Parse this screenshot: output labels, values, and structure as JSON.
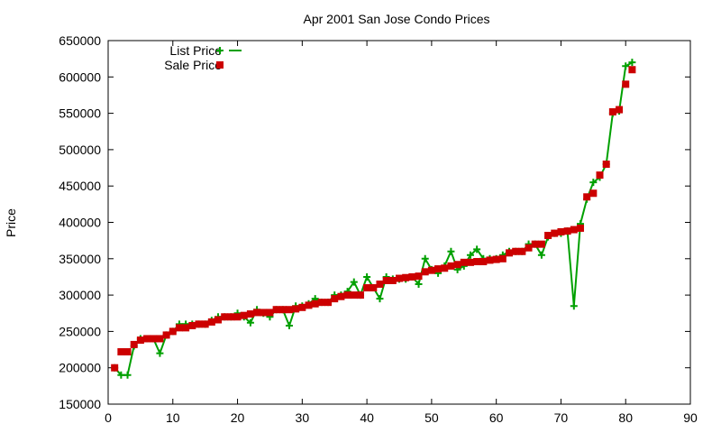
{
  "chart_data": {
    "type": "scatter",
    "title": "Apr 2001 San Jose Condo Prices",
    "xlabel": "",
    "ylabel": "Price",
    "xlim": [
      0,
      90
    ],
    "ylim": [
      150000,
      650000
    ],
    "x_ticks": [
      0,
      10,
      20,
      30,
      40,
      50,
      60,
      70,
      80,
      90
    ],
    "y_ticks": [
      150000,
      200000,
      250000,
      300000,
      350000,
      400000,
      450000,
      500000,
      550000,
      600000,
      650000
    ],
    "grid": false,
    "legend_position": "top-left",
    "series": [
      {
        "name": "List Price",
        "style": "line-with-plus-markers",
        "color": "#00a000",
        "x": [
          1,
          2,
          3,
          4,
          5,
          6,
          7,
          8,
          9,
          10,
          11,
          12,
          13,
          14,
          15,
          16,
          17,
          18,
          19,
          20,
          21,
          22,
          23,
          24,
          25,
          26,
          27,
          28,
          29,
          30,
          31,
          32,
          33,
          34,
          35,
          36,
          37,
          38,
          39,
          40,
          41,
          42,
          43,
          44,
          45,
          46,
          47,
          48,
          49,
          50,
          51,
          52,
          53,
          54,
          55,
          56,
          57,
          58,
          59,
          60,
          61,
          62,
          63,
          64,
          65,
          66,
          67,
          68,
          69,
          70,
          71,
          72,
          73,
          74,
          75,
          76,
          77,
          78,
          79,
          80,
          81
        ],
        "y": [
          200000,
          190000,
          190000,
          230000,
          240000,
          240000,
          240000,
          220000,
          245000,
          250000,
          260000,
          260000,
          260000,
          260000,
          260000,
          265000,
          270000,
          270000,
          270000,
          275000,
          270000,
          262000,
          280000,
          275000,
          270000,
          280000,
          280000,
          258000,
          285000,
          285000,
          288000,
          295000,
          290000,
          290000,
          300000,
          300000,
          305000,
          318000,
          300000,
          325000,
          310000,
          295000,
          325000,
          322000,
          322000,
          322000,
          325000,
          315000,
          350000,
          335000,
          330000,
          340000,
          360000,
          335000,
          340000,
          355000,
          363000,
          350000,
          350000,
          350000,
          355000,
          360000,
          360000,
          360000,
          370000,
          370000,
          355000,
          380000,
          385000,
          385000,
          388000,
          285000,
          398000,
          432000,
          455000,
          462000,
          480000,
          550000,
          553000,
          615000,
          620000
        ]
      },
      {
        "name": "Sale Price",
        "style": "square-markers",
        "color": "#cc0000",
        "x": [
          1,
          2,
          3,
          4,
          5,
          6,
          7,
          8,
          9,
          10,
          11,
          12,
          13,
          14,
          15,
          16,
          17,
          18,
          19,
          20,
          21,
          22,
          23,
          24,
          25,
          26,
          27,
          28,
          29,
          30,
          31,
          32,
          33,
          34,
          35,
          36,
          37,
          38,
          39,
          40,
          41,
          42,
          43,
          44,
          45,
          46,
          47,
          48,
          49,
          50,
          51,
          52,
          53,
          54,
          55,
          56,
          57,
          58,
          59,
          60,
          61,
          62,
          63,
          64,
          65,
          66,
          67,
          68,
          69,
          70,
          71,
          72,
          73,
          74,
          75,
          76,
          77,
          78,
          79,
          80,
          81
        ],
        "y": [
          200000,
          222000,
          222000,
          232000,
          238000,
          240000,
          240000,
          240000,
          245000,
          250000,
          255000,
          255000,
          258000,
          260000,
          260000,
          263000,
          266000,
          270000,
          270000,
          270000,
          272000,
          274000,
          276000,
          276000,
          276000,
          280000,
          280000,
          280000,
          281000,
          283000,
          286000,
          288000,
          290000,
          290000,
          295000,
          298000,
          300000,
          300000,
          300000,
          310000,
          310000,
          315000,
          320000,
          320000,
          323000,
          324000,
          325000,
          326000,
          332000,
          334000,
          336000,
          337000,
          340000,
          342000,
          345000,
          345000,
          346000,
          346000,
          348000,
          349000,
          350000,
          358000,
          360000,
          360000,
          365000,
          370000,
          370000,
          382000,
          385000,
          387000,
          388000,
          390000,
          392000,
          435000,
          440000,
          465000,
          480000,
          552000,
          555000,
          590000,
          610000
        ]
      }
    ]
  }
}
